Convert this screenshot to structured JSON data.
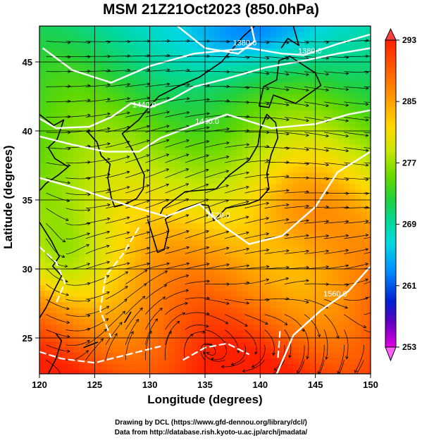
{
  "title": "MSM 21Z21Oct2023 (850.0hPa)",
  "x_axis": {
    "label": "Longitude (degrees)",
    "range": [
      120,
      150
    ],
    "ticks": [
      "120",
      "125",
      "130",
      "135",
      "140",
      "145",
      "150"
    ]
  },
  "y_axis": {
    "label": "Latitude  (degrees)",
    "range": [
      22.4,
      47.6
    ],
    "ticks": [
      "25",
      "30",
      "35",
      "40",
      "45"
    ]
  },
  "colorbar": {
    "ticks": [
      "293",
      "285",
      "277",
      "269",
      "261",
      "253"
    ],
    "range": [
      253,
      293
    ],
    "colors": [
      "#e000e0",
      "#0000c8",
      "#0090ff",
      "#00e0e0",
      "#00d070",
      "#40d000",
      "#c8e600",
      "#ffd000",
      "#ff8000",
      "#ff2000"
    ]
  },
  "contours": [
    {
      "label": "1380.0"
    },
    {
      "label": "1380.0"
    },
    {
      "label": "1440.0"
    },
    {
      "label": "1460.0"
    },
    {
      "label": "1520.0"
    },
    {
      "label": "1560.0"
    }
  ],
  "credits": {
    "line1": "Drawing by DCL (https://www.gfd-dennou.org/library/dcl/)",
    "line2": "Data from http://database.rish.kyoto-u.ac.jp/arch/jmadata/"
  },
  "chart_data": {
    "type": "heatmap",
    "title": "MSM 21Z21Oct2023 (850.0hPa)",
    "xlabel": "Longitude (degrees)",
    "ylabel": "Latitude  (degrees)",
    "xlim": [
      120,
      150
    ],
    "ylim": [
      22.4,
      47.6
    ],
    "colorbar_range": [
      253,
      293
    ],
    "contour_levels": [
      1380,
      1440,
      1460,
      1520,
      1560
    ],
    "grid": true
  }
}
